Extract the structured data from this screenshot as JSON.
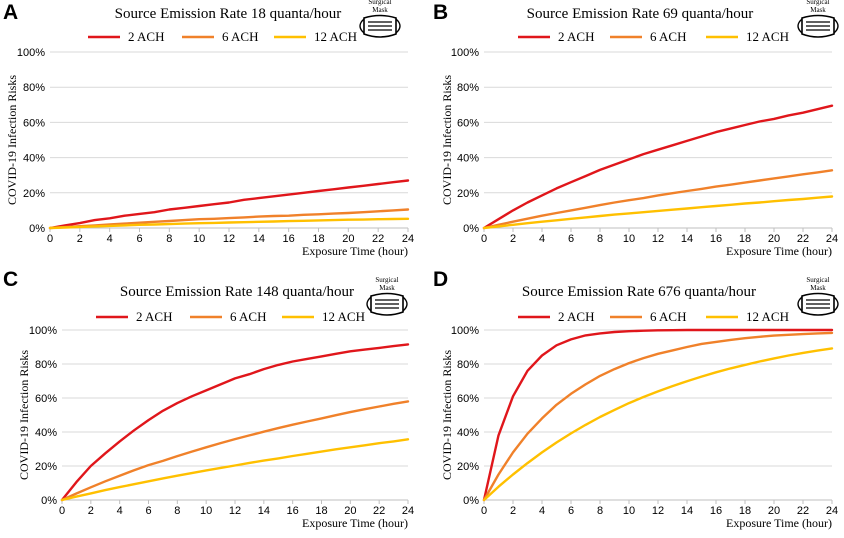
{
  "colors": {
    "2 ACH": "#e0161b",
    "6 ACH": "#f0812a",
    "12 ACH": "#ffc000"
  },
  "mask_label": [
    "Surgical",
    "Mask"
  ],
  "chart_data": [
    {
      "panel": "A",
      "type": "line",
      "title": "Source Emission Rate 18 quanta/hour",
      "xlabel": "Exposure Time (hour)",
      "ylabel": "COVID-19 Infection Risks",
      "xlim": [
        0,
        24
      ],
      "ylim": [
        0,
        100
      ],
      "x_ticks": [
        "0",
        "2",
        "4",
        "6",
        "8",
        "10",
        "12",
        "14",
        "16",
        "18",
        "20",
        "22",
        "24"
      ],
      "y_ticks": [
        "0%",
        "20%",
        "40%",
        "60%",
        "80%",
        "100%"
      ],
      "x": [
        0,
        1,
        2,
        3,
        4,
        5,
        6,
        7,
        8,
        9,
        10,
        11,
        12,
        13,
        14,
        15,
        16,
        17,
        18,
        19,
        20,
        21,
        22,
        23,
        24
      ],
      "series": [
        {
          "name": "2 ACH",
          "values": [
            0,
            1.5,
            2.8,
            4.5,
            5.5,
            7,
            8,
            9,
            10.5,
            11.5,
            12.5,
            13.5,
            14.5,
            16,
            17,
            18,
            19,
            20,
            21,
            22,
            23,
            24,
            25,
            26,
            27
          ]
        },
        {
          "name": "6 ACH",
          "values": [
            0,
            0.5,
            1,
            1.5,
            2,
            2.5,
            3,
            3.5,
            4,
            4.5,
            5,
            5.2,
            5.6,
            6,
            6.5,
            6.8,
            7,
            7.5,
            7.8,
            8.2,
            8.5,
            9,
            9.5,
            10,
            10.5
          ]
        },
        {
          "name": "12 ACH",
          "values": [
            0,
            0.3,
            0.6,
            0.9,
            1.2,
            1.5,
            1.8,
            2,
            2.2,
            2.5,
            2.7,
            2.9,
            3.1,
            3.3,
            3.5,
            3.7,
            3.9,
            4.1,
            4.3,
            4.5,
            4.7,
            4.8,
            5,
            5.1,
            5.2
          ]
        }
      ]
    },
    {
      "panel": "B",
      "type": "line",
      "title": "Source Emission Rate 69 quanta/hour",
      "xlabel": "Exposure Time (hour)",
      "ylabel": "COVID-19 Infection Risks",
      "xlim": [
        0,
        24
      ],
      "ylim": [
        0,
        100
      ],
      "x_ticks": [
        "0",
        "2",
        "4",
        "6",
        "8",
        "10",
        "12",
        "14",
        "16",
        "18",
        "20",
        "22",
        "24"
      ],
      "y_ticks": [
        "0%",
        "20%",
        "40%",
        "60%",
        "80%",
        "100%"
      ],
      "x": [
        0,
        1,
        2,
        3,
        4,
        5,
        6,
        7,
        8,
        9,
        10,
        11,
        12,
        13,
        14,
        15,
        16,
        17,
        18,
        19,
        20,
        21,
        22,
        23,
        24
      ],
      "series": [
        {
          "name": "2 ACH",
          "values": [
            0,
            5,
            10,
            14.5,
            18.5,
            22.5,
            26,
            29.5,
            33,
            36,
            39,
            42,
            44.5,
            47,
            49.5,
            52,
            54.5,
            56.5,
            58.5,
            60.5,
            62,
            64,
            65.5,
            67.5,
            69.5
          ]
        },
        {
          "name": "6 ACH",
          "values": [
            0,
            1.8,
            3.6,
            5.3,
            7,
            8.5,
            10,
            11.5,
            13,
            14.5,
            15.8,
            17,
            18.5,
            19.8,
            21,
            22.2,
            23.5,
            24.6,
            25.8,
            27,
            28.2,
            29.3,
            30.5,
            31.6,
            32.8
          ]
        },
        {
          "name": "12 ACH",
          "values": [
            0,
            0.9,
            1.8,
            2.7,
            3.6,
            4.4,
            5.2,
            6,
            6.8,
            7.6,
            8.3,
            9,
            9.7,
            10.4,
            11.1,
            11.8,
            12.5,
            13.2,
            13.9,
            14.5,
            15.2,
            15.9,
            16.5,
            17.2,
            17.9
          ]
        }
      ]
    },
    {
      "panel": "C",
      "type": "line",
      "title": "Source Emission Rate 148 quanta/hour",
      "xlabel": "Exposure Time (hour)",
      "ylabel": "COVID-19 Infection Risks",
      "xlim": [
        0,
        24
      ],
      "ylim": [
        0,
        100
      ],
      "x_ticks": [
        "0",
        "2",
        "4",
        "6",
        "8",
        "10",
        "12",
        "14",
        "16",
        "18",
        "20",
        "22",
        "24"
      ],
      "y_ticks": [
        "0%",
        "20%",
        "40%",
        "60%",
        "80%",
        "100%"
      ],
      "x": [
        0,
        1,
        2,
        3,
        4,
        5,
        6,
        7,
        8,
        9,
        10,
        11,
        12,
        13,
        14,
        15,
        16,
        17,
        18,
        19,
        20,
        21,
        22,
        23,
        24
      ],
      "series": [
        {
          "name": "2 ACH",
          "values": [
            0,
            10.5,
            20,
            27.5,
            34.5,
            41,
            47,
            52.5,
            57,
            61,
            64.5,
            68,
            71.5,
            74,
            77,
            79.5,
            81.5,
            83,
            84.5,
            86,
            87.5,
            88.5,
            89.5,
            90.5,
            91.5
          ]
        },
        {
          "name": "6 ACH",
          "values": [
            0,
            3.8,
            7.5,
            11,
            14.3,
            17.5,
            20.5,
            23,
            25.8,
            28.5,
            31,
            33.5,
            35.8,
            38,
            40.2,
            42.3,
            44.3,
            46.2,
            48,
            49.9,
            51.7,
            53.4,
            55,
            56.6,
            58
          ]
        },
        {
          "name": "12 ACH",
          "values": [
            0,
            2,
            3.9,
            5.8,
            7.6,
            9.3,
            11,
            12.7,
            14.3,
            15.8,
            17.4,
            18.9,
            20.3,
            21.8,
            23.2,
            24.5,
            25.9,
            27.2,
            28.5,
            29.8,
            31,
            32.2,
            33.4,
            34.5,
            35.7
          ]
        }
      ]
    },
    {
      "panel": "D",
      "type": "line",
      "title": "Source Emission Rate 676 quanta/hour",
      "xlabel": "Exposure Time (hour)",
      "ylabel": "COVID-19 Infection Risks",
      "xlim": [
        0,
        24
      ],
      "ylim": [
        0,
        100
      ],
      "x_ticks": [
        "0",
        "2",
        "4",
        "6",
        "8",
        "10",
        "12",
        "14",
        "16",
        "18",
        "20",
        "22",
        "24"
      ],
      "y_ticks": [
        "0%",
        "20%",
        "40%",
        "60%",
        "80%",
        "100%"
      ],
      "x": [
        0,
        1,
        2,
        3,
        4,
        5,
        6,
        7,
        8,
        9,
        10,
        11,
        12,
        13,
        14,
        15,
        16,
        17,
        18,
        19,
        20,
        21,
        22,
        23,
        24
      ],
      "series": [
        {
          "name": "2 ACH",
          "values": [
            0,
            38,
            61,
            76,
            85,
            91,
            94.5,
            96.8,
            98,
            98.8,
            99.3,
            99.6,
            99.8,
            99.9,
            100,
            100,
            100,
            100,
            100,
            100,
            100,
            100,
            100,
            100,
            100
          ]
        },
        {
          "name": "6 ACH",
          "values": [
            0,
            15,
            28,
            39,
            48,
            56,
            62.5,
            68,
            73,
            77,
            80.5,
            83.5,
            86,
            88,
            90,
            91.8,
            93,
            94.2,
            95.2,
            96,
            96.7,
            97.2,
            97.6,
            98,
            98.3
          ]
        },
        {
          "name": "12 ACH",
          "values": [
            0,
            7.8,
            15,
            21.7,
            28,
            33.8,
            39.2,
            44.2,
            48.8,
            53,
            57,
            60.6,
            63.9,
            67,
            69.9,
            72.6,
            75.1,
            77.4,
            79.5,
            81.5,
            83.3,
            85,
            86.5,
            87.9,
            89.2
          ]
        }
      ]
    }
  ]
}
